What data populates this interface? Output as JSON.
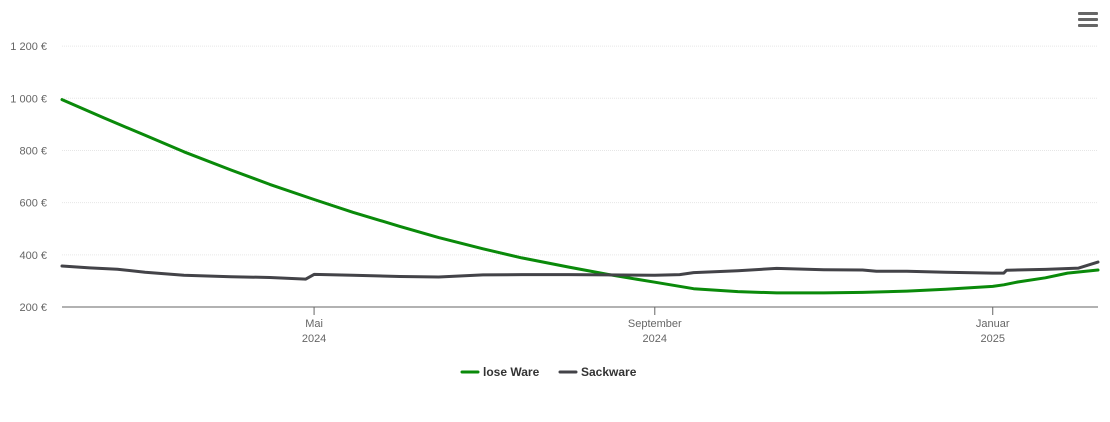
{
  "colors": {
    "lose_ware": "#0a8a0a",
    "sackware": "#434348",
    "axis": "#666666"
  },
  "menu": {
    "icon": "hamburger-menu-icon"
  },
  "chart_data": {
    "type": "line",
    "ylim": [
      200,
      1300
    ],
    "y_ticks": [
      {
        "value": 200,
        "label": "200 €"
      },
      {
        "value": 400,
        "label": "400 €"
      },
      {
        "value": 600,
        "label": "600 €"
      },
      {
        "value": 800,
        "label": "800 €"
      },
      {
        "value": 1000,
        "label": "1 000 €"
      },
      {
        "value": 1200,
        "label": "1 200 €"
      }
    ],
    "xlim": [
      "2024-01-31",
      "2025-02-08"
    ],
    "x_ticks": [
      {
        "date": "2024-05-01",
        "month": "Mai",
        "year": "2024"
      },
      {
        "date": "2024-09-01",
        "month": "September",
        "year": "2024"
      },
      {
        "date": "2025-01-01",
        "month": "Januar",
        "year": "2025"
      }
    ],
    "grid": true,
    "legend_position": "bottom-center",
    "series": [
      {
        "name": "lose Ware",
        "color": "#0a8a0a",
        "points": [
          [
            "2024-01-31",
            995
          ],
          [
            "2024-02-15",
            925
          ],
          [
            "2024-03-01",
            858
          ],
          [
            "2024-03-15",
            795
          ],
          [
            "2024-04-01",
            725
          ],
          [
            "2024-04-15",
            670
          ],
          [
            "2024-05-01",
            612
          ],
          [
            "2024-05-15",
            563
          ],
          [
            "2024-06-01",
            509
          ],
          [
            "2024-06-15",
            466
          ],
          [
            "2024-07-01",
            423
          ],
          [
            "2024-07-15",
            388
          ],
          [
            "2024-08-01",
            353
          ],
          [
            "2024-08-15",
            325
          ],
          [
            "2024-09-01",
            295
          ],
          [
            "2024-09-15",
            270
          ],
          [
            "2024-10-01",
            259
          ],
          [
            "2024-10-15",
            254
          ],
          [
            "2024-11-01",
            254
          ],
          [
            "2024-11-15",
            256
          ],
          [
            "2024-12-01",
            261
          ],
          [
            "2024-12-15",
            268
          ],
          [
            "2025-01-01",
            279
          ],
          [
            "2025-01-05",
            285
          ],
          [
            "2025-01-10",
            296
          ],
          [
            "2025-01-20",
            312
          ],
          [
            "2025-01-28",
            330
          ],
          [
            "2025-02-08",
            342
          ]
        ]
      },
      {
        "name": "Sackware",
        "color": "#434348",
        "points": [
          [
            "2024-01-31",
            357
          ],
          [
            "2024-02-10",
            350
          ],
          [
            "2024-02-20",
            345
          ],
          [
            "2024-03-01",
            333
          ],
          [
            "2024-03-15",
            322
          ],
          [
            "2024-04-01",
            316
          ],
          [
            "2024-04-15",
            313
          ],
          [
            "2024-04-25",
            308
          ],
          [
            "2024-04-28",
            307
          ],
          [
            "2024-05-01",
            325
          ],
          [
            "2024-05-15",
            322
          ],
          [
            "2024-06-01",
            317
          ],
          [
            "2024-06-15",
            315
          ],
          [
            "2024-07-01",
            323
          ],
          [
            "2024-07-15",
            324
          ],
          [
            "2024-08-01",
            324
          ],
          [
            "2024-08-15",
            323
          ],
          [
            "2024-09-01",
            322
          ],
          [
            "2024-09-10",
            324
          ],
          [
            "2024-09-15",
            332
          ],
          [
            "2024-10-01",
            339
          ],
          [
            "2024-10-15",
            348
          ],
          [
            "2024-11-01",
            343
          ],
          [
            "2024-11-15",
            342
          ],
          [
            "2024-11-20",
            337
          ],
          [
            "2024-12-01",
            337
          ],
          [
            "2024-12-15",
            333
          ],
          [
            "2025-01-01",
            330
          ],
          [
            "2025-01-05",
            330
          ],
          [
            "2025-01-06",
            341
          ],
          [
            "2025-01-20",
            344
          ],
          [
            "2025-02-01",
            349
          ],
          [
            "2025-02-08",
            372
          ]
        ]
      }
    ]
  }
}
